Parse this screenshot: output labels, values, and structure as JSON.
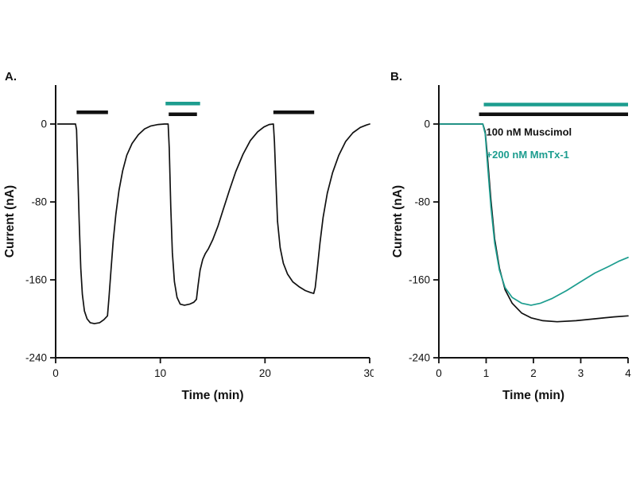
{
  "figure": {
    "panels": [
      {
        "label": "A."
      },
      {
        "label": "B."
      }
    ]
  },
  "colors": {
    "black": "#111111",
    "teal": "#1d9d8f"
  },
  "chart_data": [
    {
      "type": "line",
      "panel": "A",
      "xlabel": "Time (min)",
      "ylabel": "Current (nA)",
      "xlim": [
        0,
        30
      ],
      "ylim": [
        -240,
        40
      ],
      "xticks": [
        0,
        10,
        20,
        30
      ],
      "yticks": [
        0,
        -80,
        -160,
        -240
      ],
      "grid": false,
      "bars": [
        {
          "name": "muscimol-application-bar-1",
          "color": "#111111",
          "x1": 2.0,
          "x2": 5.0,
          "y": 12
        },
        {
          "name": "mmtx1-application-bar",
          "color": "#1d9d8f",
          "x1": 10.5,
          "x2": 13.8,
          "y": 21
        },
        {
          "name": "muscimol-application-bar-2",
          "color": "#111111",
          "x1": 10.8,
          "x2": 13.5,
          "y": 10
        },
        {
          "name": "muscimol-application-bar-3",
          "color": "#111111",
          "x1": 20.8,
          "x2": 24.7,
          "y": 12
        }
      ],
      "series": [
        {
          "name": "muscimol current trace",
          "color": "#111111",
          "points": [
            [
              0.2,
              0
            ],
            [
              1.9,
              0
            ],
            [
              2.0,
              -6
            ],
            [
              2.1,
              -45
            ],
            [
              2.25,
              -100
            ],
            [
              2.4,
              -148
            ],
            [
              2.55,
              -175
            ],
            [
              2.75,
              -192
            ],
            [
              3.0,
              -200
            ],
            [
              3.3,
              -204
            ],
            [
              3.7,
              -205
            ],
            [
              4.2,
              -204
            ],
            [
              4.6,
              -201
            ],
            [
              4.95,
              -197
            ],
            [
              5.1,
              -178
            ],
            [
              5.3,
              -148
            ],
            [
              5.5,
              -120
            ],
            [
              5.75,
              -93
            ],
            [
              6.05,
              -68
            ],
            [
              6.4,
              -48
            ],
            [
              6.8,
              -32
            ],
            [
              7.3,
              -20
            ],
            [
              7.9,
              -11
            ],
            [
              8.5,
              -5
            ],
            [
              9.1,
              -2
            ],
            [
              9.8,
              -0.5
            ],
            [
              10.4,
              0
            ],
            [
              10.75,
              0
            ],
            [
              10.85,
              -25
            ],
            [
              11.0,
              -85
            ],
            [
              11.15,
              -132
            ],
            [
              11.35,
              -162
            ],
            [
              11.6,
              -178
            ],
            [
              11.9,
              -185
            ],
            [
              12.3,
              -186
            ],
            [
              12.8,
              -185
            ],
            [
              13.2,
              -183
            ],
            [
              13.45,
              -180
            ],
            [
              13.6,
              -166
            ],
            [
              13.8,
              -150
            ],
            [
              14.05,
              -139
            ],
            [
              14.3,
              -133
            ],
            [
              14.6,
              -128
            ],
            [
              15.0,
              -119
            ],
            [
              15.5,
              -105
            ],
            [
              16.0,
              -88
            ],
            [
              16.6,
              -68
            ],
            [
              17.2,
              -49
            ],
            [
              17.9,
              -31
            ],
            [
              18.6,
              -17
            ],
            [
              19.3,
              -8
            ],
            [
              19.9,
              -3
            ],
            [
              20.4,
              -0.5
            ],
            [
              20.8,
              0
            ],
            [
              20.9,
              -18
            ],
            [
              21.05,
              -62
            ],
            [
              21.2,
              -100
            ],
            [
              21.45,
              -127
            ],
            [
              21.75,
              -143
            ],
            [
              22.15,
              -154
            ],
            [
              22.65,
              -162
            ],
            [
              23.25,
              -167
            ],
            [
              23.85,
              -171
            ],
            [
              24.35,
              -173
            ],
            [
              24.65,
              -174
            ],
            [
              24.8,
              -168
            ],
            [
              25.0,
              -148
            ],
            [
              25.25,
              -122
            ],
            [
              25.55,
              -96
            ],
            [
              25.95,
              -71
            ],
            [
              26.45,
              -50
            ],
            [
              27.05,
              -32
            ],
            [
              27.7,
              -18
            ],
            [
              28.4,
              -9
            ],
            [
              29.1,
              -3.5
            ],
            [
              29.7,
              -1
            ],
            [
              30,
              0
            ]
          ]
        }
      ],
      "annotations": []
    },
    {
      "type": "line",
      "panel": "B",
      "xlabel": "Time (min)",
      "ylabel": "Current (nA)",
      "xlim": [
        0,
        4
      ],
      "ylim": [
        -240,
        40
      ],
      "xticks": [
        0,
        1,
        2,
        3,
        4
      ],
      "yticks": [
        0,
        -80,
        -160,
        -240
      ],
      "grid": false,
      "bars": [
        {
          "name": "mmtx1-application-bar",
          "color": "#1d9d8f",
          "x1": 0.95,
          "x2": 4.0,
          "y": 20
        },
        {
          "name": "muscimol-application-bar",
          "color": "#111111",
          "x1": 0.85,
          "x2": 4.0,
          "y": 10
        }
      ],
      "series": [
        {
          "name": "100 nM Muscimol",
          "color": "#111111",
          "points": [
            [
              0,
              0
            ],
            [
              0.93,
              0
            ],
            [
              0.98,
              -8
            ],
            [
              1.03,
              -35
            ],
            [
              1.1,
              -78
            ],
            [
              1.18,
              -118
            ],
            [
              1.28,
              -148
            ],
            [
              1.4,
              -170
            ],
            [
              1.55,
              -184
            ],
            [
              1.75,
              -194
            ],
            [
              1.95,
              -199
            ],
            [
              2.2,
              -202
            ],
            [
              2.5,
              -203
            ],
            [
              2.9,
              -202
            ],
            [
              3.3,
              -200
            ],
            [
              3.7,
              -198
            ],
            [
              4.0,
              -197
            ]
          ]
        },
        {
          "name": "+200 nM MmTx-1",
          "color": "#1d9d8f",
          "points": [
            [
              0,
              0
            ],
            [
              0.93,
              0
            ],
            [
              0.98,
              -10
            ],
            [
              1.03,
              -42
            ],
            [
              1.1,
              -85
            ],
            [
              1.18,
              -122
            ],
            [
              1.28,
              -150
            ],
            [
              1.4,
              -168
            ],
            [
              1.55,
              -178
            ],
            [
              1.75,
              -184
            ],
            [
              1.95,
              -186
            ],
            [
              2.15,
              -184
            ],
            [
              2.4,
              -179
            ],
            [
              2.7,
              -171
            ],
            [
              3.0,
              -162
            ],
            [
              3.3,
              -153
            ],
            [
              3.6,
              -146
            ],
            [
              3.8,
              -141
            ],
            [
              4.0,
              -137
            ]
          ]
        }
      ],
      "annotations": [
        {
          "text": "100 nM Muscimol",
          "x": 1.0,
          "y": -12,
          "color": "#111111",
          "size": 13,
          "weight": "bold",
          "anchor": "start"
        },
        {
          "text": "+200 nM MmTx-1",
          "x": 1.0,
          "y": -35,
          "color": "#1d9d8f",
          "size": 13,
          "weight": "bold",
          "anchor": "start"
        }
      ]
    }
  ]
}
